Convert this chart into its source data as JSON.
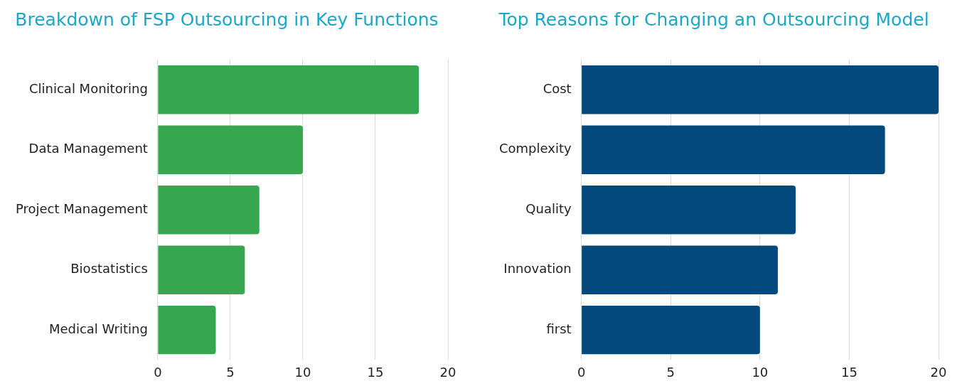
{
  "chart_data": [
    {
      "type": "bar",
      "orientation": "horizontal",
      "title": "Breakdown of FSP Outsourcing in Key Functions",
      "categories": [
        "Clinical Monitoring",
        "Data Management",
        "Project Management",
        "Biostatistics",
        "Medical Writing"
      ],
      "values": [
        18,
        10,
        7,
        6,
        4
      ],
      "color": "#36a64f",
      "xlim": [
        0,
        20
      ],
      "xticks": [
        0,
        5,
        10,
        15,
        20
      ],
      "grid": "x",
      "legend": false
    },
    {
      "type": "bar",
      "orientation": "horizontal",
      "title": "Top Reasons for Changing an Outsourcing Model",
      "categories": [
        "Cost",
        "Complexity",
        "Quality",
        "Innovation",
        "first"
      ],
      "values": [
        20,
        17,
        12,
        11,
        10
      ],
      "color": "#03497b",
      "xlim": [
        0,
        20
      ],
      "xticks": [
        0,
        5,
        10,
        15,
        20
      ],
      "grid": "x",
      "legend": false
    }
  ]
}
